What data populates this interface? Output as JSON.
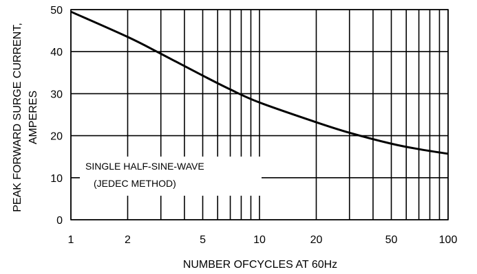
{
  "chart_data": {
    "type": "line",
    "title": "",
    "xlabel": "NUMBER OFCYCLES AT 60Hz",
    "ylabel_lines": [
      "PEAK FORWARD SURGE CURRENT,",
      "AMPERES"
    ],
    "x_scale": "log",
    "xlim": [
      1,
      100
    ],
    "ylim": [
      0,
      50
    ],
    "grid": true,
    "x_ticks": [
      1,
      2,
      5,
      10,
      20,
      50,
      100
    ],
    "x_tick_labels": [
      "1",
      "2",
      "5",
      "10",
      "20",
      "50",
      "100"
    ],
    "x_grid": [
      1,
      2,
      3,
      4,
      5,
      6,
      7,
      8,
      9,
      10,
      20,
      30,
      40,
      50,
      60,
      70,
      80,
      90,
      100
    ],
    "y_ticks": [
      0,
      10,
      20,
      30,
      40,
      50
    ],
    "y_tick_labels": [
      "0",
      "10",
      "20",
      "30",
      "40",
      "50"
    ],
    "annotation_lines": [
      "SINGLE HALF-SINE-WAVE",
      "(JEDEC METHOD)"
    ],
    "series": [
      {
        "x": [
          1,
          2,
          3,
          5,
          7,
          10,
          20,
          30,
          50,
          70,
          100
        ],
        "values": [
          49.5,
          43.5,
          39.5,
          34.3,
          31,
          27.9,
          23.2,
          20.7,
          18.1,
          16.8,
          15.7
        ]
      }
    ],
    "colors": {
      "line": "#000000",
      "grid": "#000000",
      "background": "#ffffff"
    }
  }
}
